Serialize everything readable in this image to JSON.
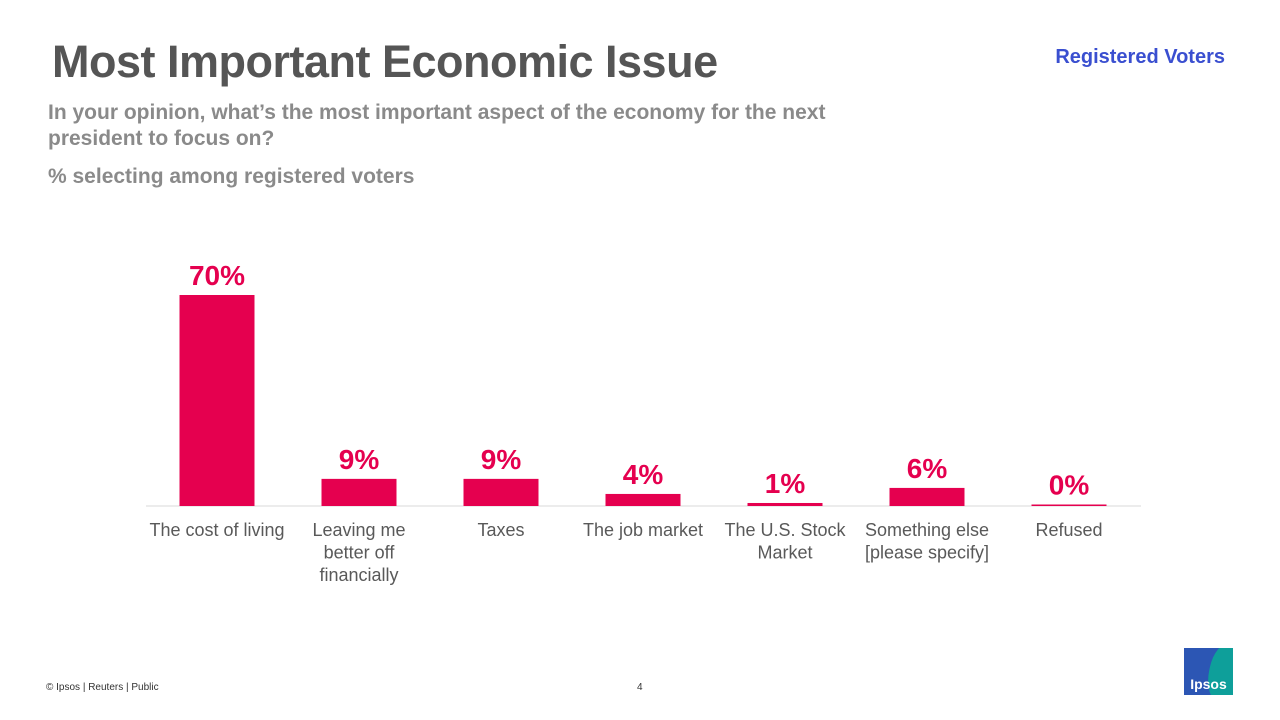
{
  "header": {
    "title": "Most Important Economic Issue",
    "audience": "Registered Voters",
    "question": "In your opinion, what’s the most important aspect of the economy for the next president to focus on?",
    "subtitle": "% selecting among registered voters"
  },
  "chart_data": {
    "type": "bar",
    "categories": [
      "The cost of living",
      "Leaving me better off financially",
      "Taxes",
      "The job market",
      "The U.S. Stock Market",
      "Something else [please specify]",
      "Refused"
    ],
    "values": [
      70,
      9,
      9,
      4,
      1,
      6,
      0
    ],
    "value_labels": [
      "70%",
      "9%",
      "9%",
      "4%",
      "1%",
      "6%",
      "0%"
    ],
    "ylim": [
      0,
      70
    ],
    "grid": false,
    "bar_color": "#e5004f",
    "label_color": "#e5004f"
  },
  "footer": {
    "copyright": "© Ipsos | Reuters | Public",
    "page": "4"
  },
  "logo": {
    "text": "Ipsos"
  }
}
